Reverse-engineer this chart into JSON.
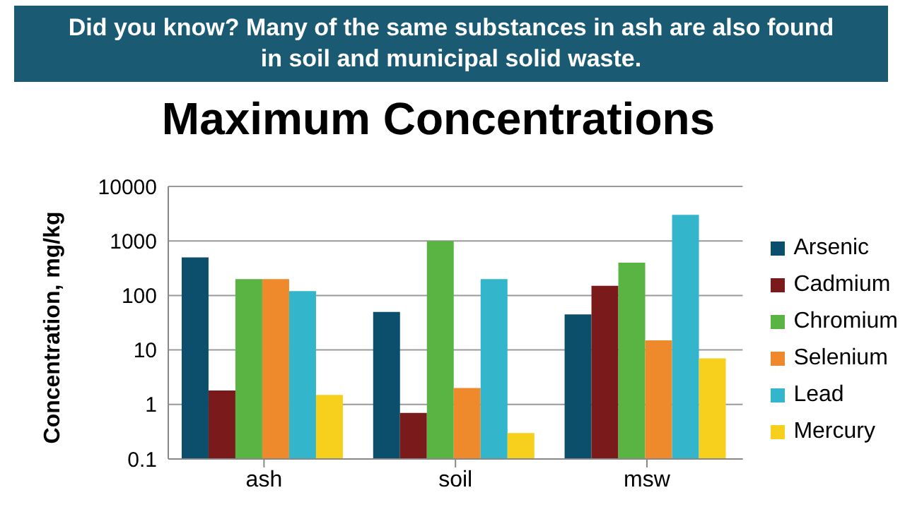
{
  "chart_data": {
    "type": "bar",
    "title": "Maximum Concentrations",
    "annotations": [
      "Did you know? Many of the same substances in ash are also found in soil and municipal solid waste."
    ],
    "ylabel": "Concentration, mg/kg",
    "categories": [
      "ash",
      "soil",
      "msw"
    ],
    "series": [
      {
        "name": "Arsenic",
        "color": "#0b4f6c",
        "values": [
          500,
          50,
          45
        ]
      },
      {
        "name": "Cadmium",
        "color": "#7a1a1a",
        "values": [
          1.8,
          0.7,
          150
        ]
      },
      {
        "name": "Chromium",
        "color": "#5ab443",
        "values": [
          200,
          1000,
          400
        ]
      },
      {
        "name": "Selenium",
        "color": "#ee8a2c",
        "values": [
          200,
          2,
          15
        ]
      },
      {
        "name": "Lead",
        "color": "#33b5cc",
        "values": [
          120,
          200,
          3000
        ]
      },
      {
        "name": "Mercury",
        "color": "#f7cf1d",
        "values": [
          1.5,
          0.3,
          7
        ]
      }
    ],
    "log": true,
    "ylim": [
      0.1,
      10000
    ],
    "yticks": [
      0.1,
      1,
      10,
      100,
      1000,
      10000
    ],
    "grid": "y",
    "legend": "right"
  }
}
